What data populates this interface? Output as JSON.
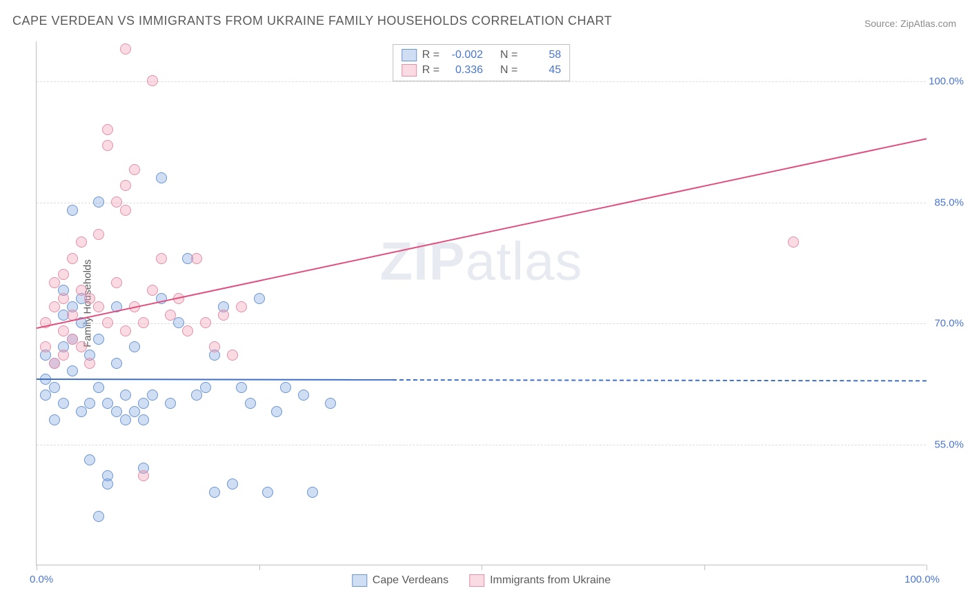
{
  "title": "CAPE VERDEAN VS IMMIGRANTS FROM UKRAINE FAMILY HOUSEHOLDS CORRELATION CHART",
  "source_label": "Source: ZipAtlas.com",
  "watermark_bold": "ZIP",
  "watermark_rest": "atlas",
  "chart": {
    "type": "scatter",
    "ylabel": "Family Households",
    "xlim": [
      0,
      100
    ],
    "ylim": [
      40,
      105
    ],
    "y_ticks": [
      55.0,
      70.0,
      85.0,
      100.0
    ],
    "y_tick_labels": [
      "55.0%",
      "70.0%",
      "85.0%",
      "100.0%"
    ],
    "x_ticks": [
      0,
      25,
      50,
      75,
      100
    ],
    "x_end_labels": [
      "0.0%",
      "100.0%"
    ],
    "background_color": "#ffffff",
    "grid_color": "#dcdcdc",
    "axis_color": "#bfbfbf",
    "text_color": "#5a5a5a",
    "value_color": "#4a76cf",
    "marker_radius": 8,
    "marker_border_width": 1.5,
    "series": [
      {
        "name": "Cape Verdeans",
        "fill": "rgba(120,160,220,0.35)",
        "stroke": "#6a94d4",
        "line_color": "#3d6fc9",
        "R": "-0.002",
        "N": "58",
        "trend": {
          "x1": 0,
          "y1": 63.2,
          "x2": 100,
          "y2": 63.0,
          "solid_until_x": 40
        },
        "points": [
          [
            1,
            63
          ],
          [
            1,
            61
          ],
          [
            1,
            66
          ],
          [
            2,
            65
          ],
          [
            2,
            58
          ],
          [
            2,
            62
          ],
          [
            3,
            67
          ],
          [
            3,
            71
          ],
          [
            3,
            60
          ],
          [
            3,
            74
          ],
          [
            4,
            72
          ],
          [
            4,
            68
          ],
          [
            4,
            64
          ],
          [
            4,
            84
          ],
          [
            5,
            70
          ],
          [
            5,
            59
          ],
          [
            5,
            73
          ],
          [
            6,
            66
          ],
          [
            6,
            60
          ],
          [
            6,
            53
          ],
          [
            7,
            68
          ],
          [
            7,
            62
          ],
          [
            7,
            46
          ],
          [
            7,
            85
          ],
          [
            8,
            60
          ],
          [
            8,
            51
          ],
          [
            8,
            50
          ],
          [
            9,
            72
          ],
          [
            9,
            59
          ],
          [
            9,
            65
          ],
          [
            10,
            61
          ],
          [
            10,
            58
          ],
          [
            11,
            59
          ],
          [
            11,
            67
          ],
          [
            12,
            60
          ],
          [
            12,
            58
          ],
          [
            12,
            52
          ],
          [
            13,
            61
          ],
          [
            14,
            73
          ],
          [
            14,
            88
          ],
          [
            15,
            60
          ],
          [
            16,
            70
          ],
          [
            17,
            78
          ],
          [
            18,
            61
          ],
          [
            19,
            62
          ],
          [
            20,
            66
          ],
          [
            20,
            49
          ],
          [
            21,
            72
          ],
          [
            22,
            50
          ],
          [
            23,
            62
          ],
          [
            24,
            60
          ],
          [
            25,
            73
          ],
          [
            26,
            49
          ],
          [
            27,
            59
          ],
          [
            28,
            62
          ],
          [
            30,
            61
          ],
          [
            31,
            49
          ],
          [
            33,
            60
          ]
        ]
      },
      {
        "name": "Immigrants from Ukraine",
        "fill": "rgba(240,150,175,0.35)",
        "stroke": "#e290a8",
        "line_color": "#e04f7e",
        "R": "0.336",
        "N": "45",
        "trend": {
          "x1": 0,
          "y1": 69.5,
          "x2": 100,
          "y2": 93.0,
          "solid_until_x": 100
        },
        "points": [
          [
            1,
            67
          ],
          [
            1,
            70
          ],
          [
            2,
            65
          ],
          [
            2,
            72
          ],
          [
            2,
            75
          ],
          [
            3,
            69
          ],
          [
            3,
            76
          ],
          [
            3,
            66
          ],
          [
            3,
            73
          ],
          [
            4,
            71
          ],
          [
            4,
            68
          ],
          [
            4,
            78
          ],
          [
            5,
            74
          ],
          [
            5,
            80
          ],
          [
            5,
            67
          ],
          [
            6,
            65
          ],
          [
            6,
            73
          ],
          [
            7,
            72
          ],
          [
            7,
            81
          ],
          [
            8,
            70
          ],
          [
            8,
            92
          ],
          [
            8,
            94
          ],
          [
            9,
            85
          ],
          [
            9,
            75
          ],
          [
            10,
            69
          ],
          [
            10,
            87
          ],
          [
            10,
            84
          ],
          [
            11,
            72
          ],
          [
            11,
            89
          ],
          [
            12,
            70
          ],
          [
            12,
            51
          ],
          [
            13,
            74
          ],
          [
            13,
            100
          ],
          [
            14,
            78
          ],
          [
            15,
            71
          ],
          [
            16,
            73
          ],
          [
            17,
            69
          ],
          [
            18,
            78
          ],
          [
            19,
            70
          ],
          [
            20,
            67
          ],
          [
            21,
            71
          ],
          [
            22,
            66
          ],
          [
            23,
            72
          ],
          [
            85,
            80
          ],
          [
            10,
            104
          ]
        ]
      }
    ]
  },
  "r_box": {
    "r_label": "R =",
    "n_label": "N ="
  },
  "legend": {
    "items": [
      {
        "label": "Cape Verdeans",
        "fill": "rgba(120,160,220,0.35)",
        "stroke": "#6a94d4"
      },
      {
        "label": "Immigrants from Ukraine",
        "fill": "rgba(240,150,175,0.35)",
        "stroke": "#e290a8"
      }
    ]
  }
}
